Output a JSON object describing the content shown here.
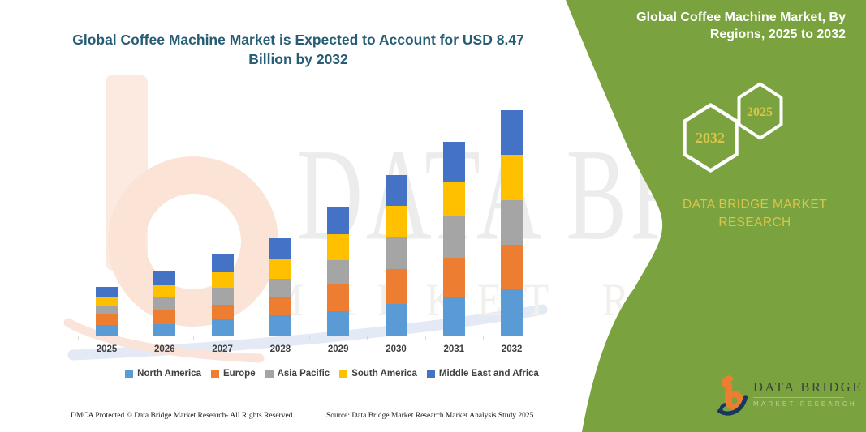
{
  "header": {
    "title": "Global Coffee Machine Market is Expected to Account for USD 8.47 Billion by 2032",
    "panel_title": "Global Coffee Machine Market, By Regions, 2025 to 2032"
  },
  "side_panel": {
    "bg_color": "#7aa23f",
    "accent_text_color": "#d9c549",
    "hexagon_large_label": "2032",
    "hexagon_small_label": "2025",
    "brand_text": "DATA BRIDGE MARKET RESEARCH"
  },
  "watermark": {
    "line1": "DATA BRIDGE",
    "line2": "MARKET RESEARCH"
  },
  "footer": {
    "dmca": "DMCA Protected © Data Bridge Market Research-  All Rights Reserved.",
    "source": "Source: Data Bridge Market Research  Market Analysis Study 2025"
  },
  "logo": {
    "name": "DATA BRIDGE",
    "subtitle": "MARKET RESEARCH"
  },
  "chart_data": {
    "type": "bar",
    "stacked": true,
    "unit": "USD Billion",
    "categories": [
      "2025",
      "2026",
      "2027",
      "2028",
      "2029",
      "2030",
      "2031",
      "2032"
    ],
    "series": [
      {
        "name": "North America",
        "color": "#5b9bd5",
        "values": [
          0.41,
          0.44,
          0.61,
          0.76,
          0.92,
          1.18,
          1.47,
          1.72
        ]
      },
      {
        "name": "Europe",
        "color": "#ed7d31",
        "values": [
          0.4,
          0.53,
          0.56,
          0.68,
          1.0,
          1.3,
          1.44,
          1.69
        ]
      },
      {
        "name": "Asia Pacific",
        "color": "#a5a5a5",
        "values": [
          0.33,
          0.48,
          0.64,
          0.69,
          0.91,
          1.19,
          1.55,
          1.68
        ]
      },
      {
        "name": "South America",
        "color": "#ffc000",
        "values": [
          0.33,
          0.44,
          0.55,
          0.73,
          0.97,
          1.21,
          1.32,
          1.7
        ]
      },
      {
        "name": "Middle East and Africa",
        "color": "#4472c4",
        "values": [
          0.35,
          0.54,
          0.68,
          0.79,
          1.01,
          1.14,
          1.49,
          1.68
        ]
      }
    ],
    "totals": [
      1.82,
      2.43,
      3.04,
      3.65,
      4.81,
      6.02,
      7.27,
      8.47
    ],
    "ylim": [
      0,
      9
    ],
    "grid": false,
    "legend_position": "bottom"
  }
}
